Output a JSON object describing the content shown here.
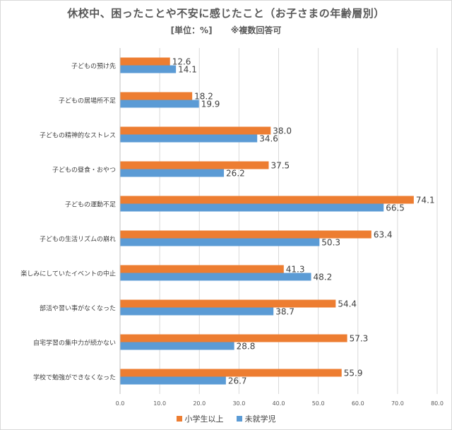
{
  "chart_data": {
    "type": "bar",
    "orientation": "horizontal",
    "title": "休校中、困ったことや不安に感じたこと（お子さまの年齢層別）",
    "subtitle": "[単位：%]",
    "note": "※複数回答可",
    "categories": [
      "子どもの預け先",
      "子どもの居場所不足",
      "子どもの精神的なストレス",
      "子どもの昼食・おやつ",
      "子どもの運動不足",
      "子どもの生活リズムの崩れ",
      "楽しみにしていたイベントの中止",
      "部活や習い事がなくなった",
      "自宅学習の集中力が続かない",
      "学校で勉強ができなくなった"
    ],
    "series": [
      {
        "name": "小学生以上",
        "color": "#ed7d31",
        "values": [
          12.6,
          18.2,
          38.0,
          37.5,
          74.1,
          63.4,
          41.3,
          54.4,
          57.3,
          55.9
        ]
      },
      {
        "name": "未就学児",
        "color": "#5b9bd5",
        "values": [
          14.1,
          19.9,
          34.6,
          26.2,
          66.5,
          50.3,
          48.2,
          38.7,
          28.8,
          26.7
        ]
      }
    ],
    "xlim": [
      0,
      80
    ],
    "xticks": [
      "0.0",
      "10.0",
      "20.0",
      "30.0",
      "40.0",
      "50.0",
      "60.0",
      "70.0",
      "80.0"
    ],
    "grid": true,
    "legend_position": "bottom"
  }
}
